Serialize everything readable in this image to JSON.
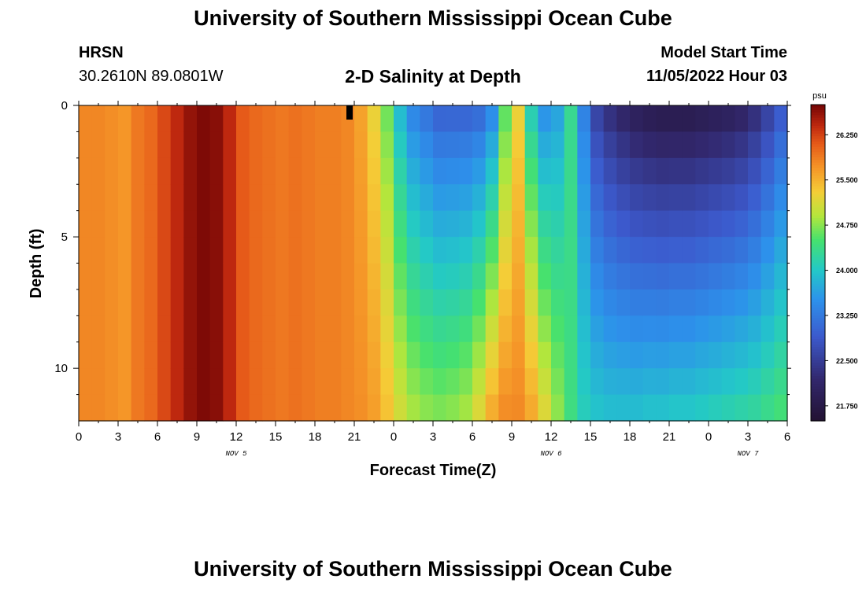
{
  "header": {
    "title": "University of Southern Mississippi Ocean Cube",
    "station": "HRSN",
    "coords": "30.2610N  89.0801W",
    "subtitle": "2-D Salinity at Depth",
    "start_label": "Model Start Time",
    "start_value": "11/05/2022 Hour 03"
  },
  "footer": {
    "title": "University of Southern Mississippi Ocean Cube"
  },
  "chart_data": {
    "type": "heatmap",
    "title": "2-D Salinity at Depth",
    "xlabel": "Forecast Time(Z)",
    "ylabel": "Depth (ft)",
    "x_range_hours": [
      0,
      54
    ],
    "y_range_ft": [
      0,
      12
    ],
    "x_ticks": [
      "0",
      "3",
      "6",
      "9",
      "12",
      "15",
      "18",
      "21",
      "0",
      "3",
      "6",
      "9",
      "12",
      "15",
      "18",
      "21",
      "0",
      "3",
      "6"
    ],
    "y_ticks": [
      "0",
      "5",
      "10"
    ],
    "y_tick_values": [
      0,
      5,
      10
    ],
    "date_labels": [
      "NOV 5",
      "NOV 6",
      "NOV 7"
    ],
    "date_label_hours": [
      12,
      36,
      51
    ],
    "colorbar": {
      "unit": "psu",
      "min": 21.5,
      "max": 26.75,
      "ticks": [
        "26.250",
        "25.500",
        "24.750",
        "24.000",
        "23.250",
        "22.500",
        "21.750"
      ],
      "tick_values": [
        26.25,
        25.5,
        24.75,
        24.0,
        23.25,
        22.5,
        21.75
      ]
    },
    "surface_salinity_psu": [
      25.8,
      25.8,
      25.75,
      25.7,
      25.9,
      26.0,
      26.2,
      26.4,
      26.6,
      26.7,
      26.65,
      26.4,
      26.1,
      26.0,
      25.95,
      25.9,
      25.95,
      25.9,
      25.85,
      25.85,
      25.8,
      25.6,
      25.2,
      24.6,
      23.8,
      23.3,
      23.1,
      22.9,
      22.9,
      22.9,
      22.95,
      23.3,
      24.5,
      25.2,
      24.0,
      23.4,
      23.6,
      24.3,
      23.3,
      22.5,
      22.2,
      22.0,
      21.85,
      21.75,
      21.7,
      21.7,
      21.7,
      21.75,
      21.8,
      21.85,
      21.95,
      22.15,
      22.45,
      22.8
    ],
    "bottom_salinity_psu": [
      25.8,
      25.8,
      25.75,
      25.7,
      25.9,
      26.0,
      26.2,
      26.4,
      26.6,
      26.7,
      26.65,
      26.4,
      26.1,
      26.0,
      25.95,
      25.9,
      25.95,
      25.9,
      25.85,
      25.85,
      25.8,
      25.75,
      25.65,
      25.4,
      25.1,
      24.9,
      24.8,
      24.75,
      24.8,
      24.9,
      25.2,
      25.6,
      25.8,
      25.8,
      25.6,
      25.2,
      24.8,
      24.4,
      24.1,
      24.0,
      23.95,
      23.95,
      23.95,
      24.0,
      24.0,
      24.05,
      24.05,
      24.1,
      24.15,
      24.2,
      24.25,
      24.3,
      24.4,
      24.5
    ]
  }
}
